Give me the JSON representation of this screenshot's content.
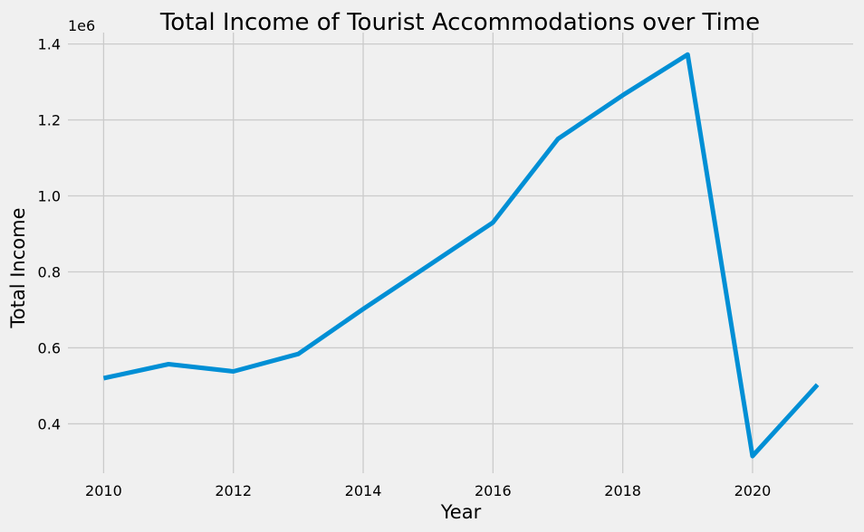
{
  "chart_data": {
    "type": "line",
    "title": "Total Income of Tourist Accommodations over Time",
    "xlabel": "Year",
    "ylabel": "Total Income",
    "y_offset_label": "1e6",
    "x": [
      2010,
      2011,
      2012,
      2013,
      2014,
      2015,
      2016,
      2017,
      2018,
      2019,
      2020,
      2021
    ],
    "series": [
      {
        "values": [
          520000,
          557000,
          538000,
          584000,
          702000,
          816000,
          930000,
          1150000,
          1265000,
          1372000,
          315000,
          503000
        ],
        "color": "#008fd5"
      }
    ],
    "xlim": [
      2009.45,
      2021.55
    ],
    "ylim": [
      0.27,
      1.43
    ],
    "x_ticks": [
      2010,
      2012,
      2014,
      2016,
      2018,
      2020
    ],
    "x_tick_labels": [
      "2010",
      "2012",
      "2014",
      "2016",
      "2018",
      "2020"
    ],
    "y_ticks": [
      0.4,
      0.6,
      0.8,
      1.0,
      1.2,
      1.4
    ],
    "y_tick_labels": [
      "0.4",
      "0.6",
      "0.8",
      "1.0",
      "1.2",
      "1.4"
    ],
    "grid": true,
    "legend": "none"
  }
}
